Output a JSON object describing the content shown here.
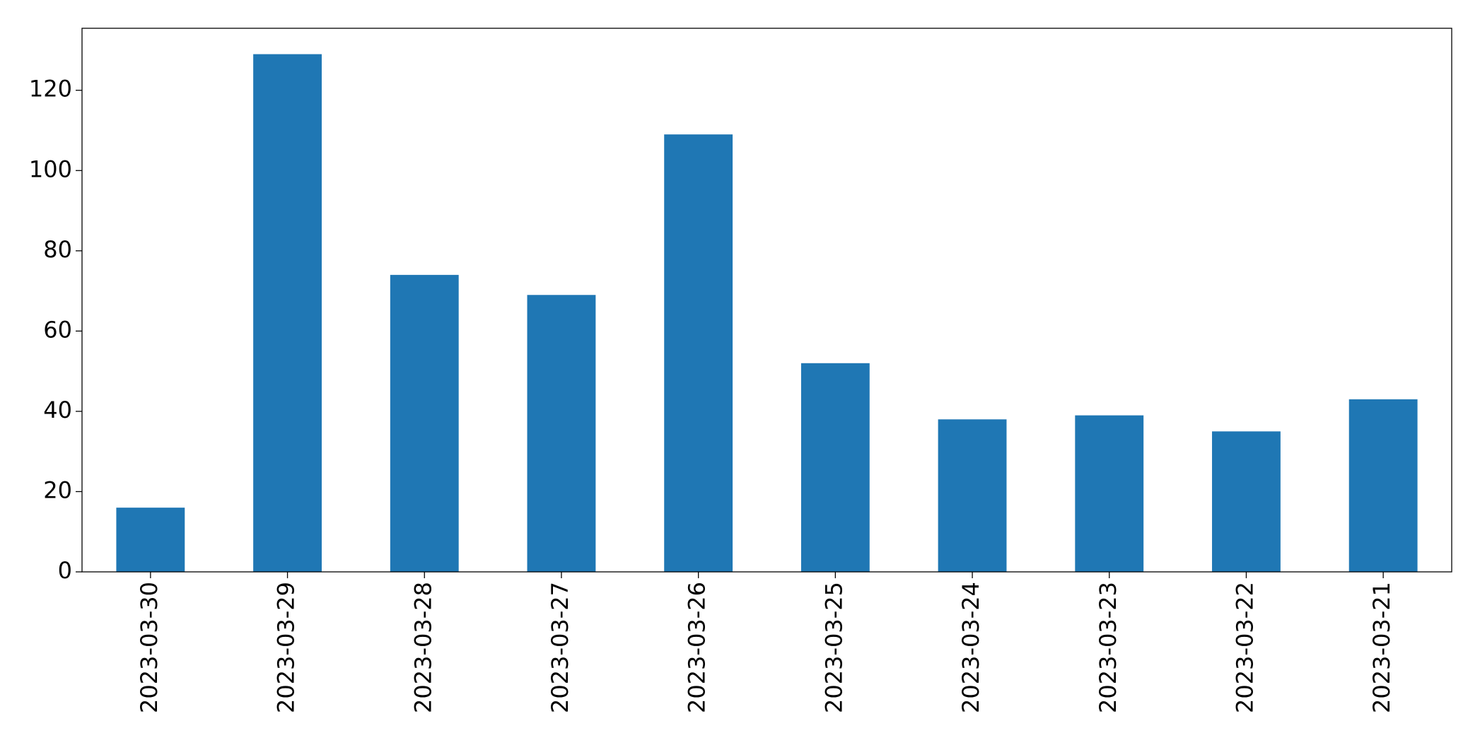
{
  "chart_data": {
    "type": "bar",
    "categories": [
      "2023-03-30",
      "2023-03-29",
      "2023-03-28",
      "2023-03-27",
      "2023-03-26",
      "2023-03-25",
      "2023-03-24",
      "2023-03-23",
      "2023-03-22",
      "2023-03-21"
    ],
    "values": [
      16,
      129,
      74,
      69,
      109,
      52,
      38,
      39,
      35,
      43
    ],
    "color": "#1f77b4",
    "ylim": [
      0,
      135.45
    ],
    "yticks": [
      0,
      20,
      40,
      60,
      80,
      100,
      120
    ],
    "grid": false
  }
}
